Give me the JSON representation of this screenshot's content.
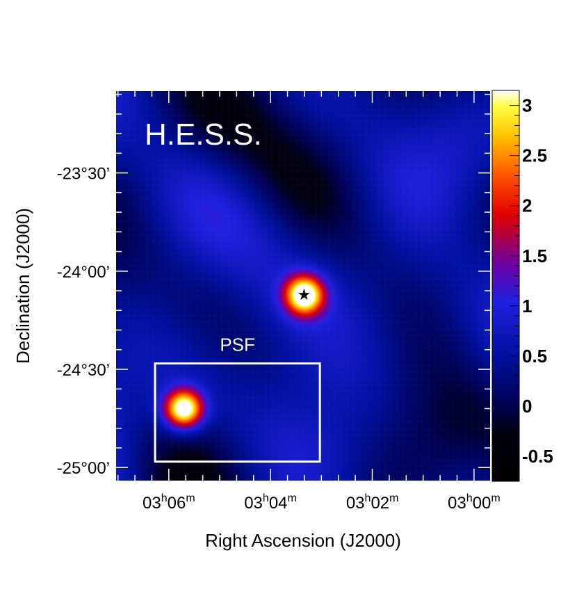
{
  "chart_data": {
    "type": "heatmap",
    "instrument_label": "H.E.S.S.",
    "psf_label": "PSF",
    "xlabel": "Right Ascension (J2000)",
    "ylabel": "Declination (J2000)",
    "x_ticks": [
      {
        "h": "03",
        "m": "06",
        "value_hours": 3.1
      },
      {
        "h": "03",
        "m": "04",
        "value_hours": 3.0667
      },
      {
        "h": "03",
        "m": "02",
        "value_hours": 3.0333
      },
      {
        "h": "03",
        "m": "00",
        "value_hours": 3.0
      }
    ],
    "y_ticks": [
      {
        "label": "-23°30’",
        "value_deg": -23.5
      },
      {
        "label": "-24°00’",
        "value_deg": -24.0
      },
      {
        "label": "-24°30’",
        "value_deg": -24.5
      },
      {
        "label": "-25°00’",
        "value_deg": -25.0
      }
    ],
    "x_range_hours": [
      3.1175,
      2.9945
    ],
    "y_range_deg": [
      -25.07,
      -23.08
    ],
    "colorbar": {
      "range": [
        -0.75,
        3.15
      ],
      "ticks": [
        "3",
        "2.5",
        "2",
        "1.5",
        "1",
        "0.5",
        "0",
        "-0.5"
      ],
      "tick_values": [
        3,
        2.5,
        2,
        1.5,
        1,
        0.5,
        0,
        -0.5
      ]
    },
    "sources": [
      {
        "name": "source",
        "ra_hours": 3.0557,
        "dec_deg": -24.12,
        "peak": 3.0,
        "sigma_deg": 0.07,
        "marker": "star"
      },
      {
        "name": "psf",
        "ra_hours": 3.0952,
        "dec_deg": -24.7,
        "peak": 3.15,
        "sigma_deg": 0.07,
        "marker": "none"
      }
    ],
    "psf_box": {
      "ra_min_hours": 3.0505,
      "ra_max_hours": 3.1045,
      "dec_min_deg": -24.97,
      "dec_max_deg": -24.47
    }
  }
}
